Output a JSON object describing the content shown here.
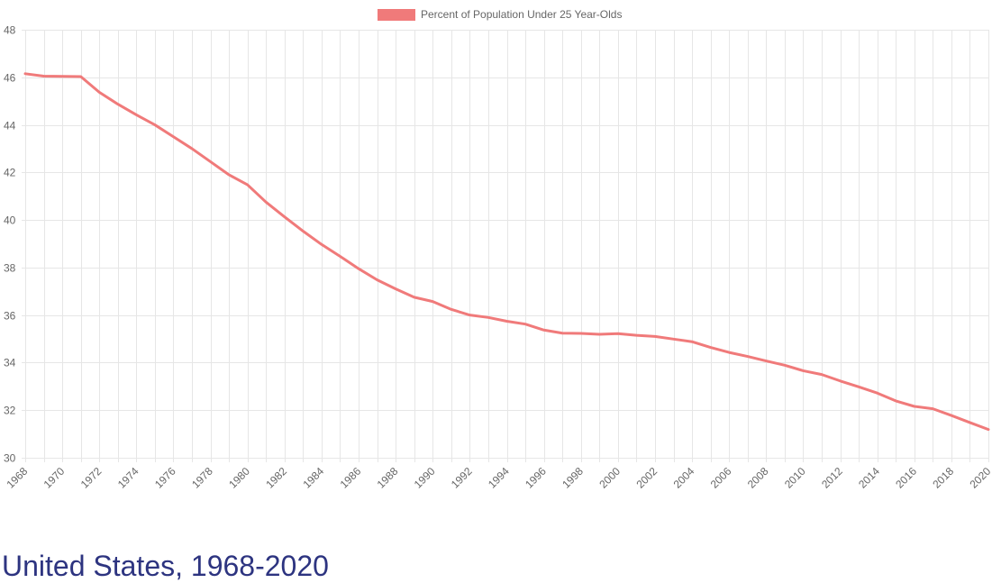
{
  "heading": "United States, 1968-2020",
  "chart_data": {
    "type": "line",
    "title": "",
    "xlabel": "",
    "ylabel": "",
    "legend_position": "top",
    "grid": true,
    "line_color": "#f07a7a",
    "ylim": [
      30,
      48
    ],
    "y_ticks": [
      30,
      32,
      34,
      36,
      38,
      40,
      42,
      44,
      46,
      48
    ],
    "x_ticks": [
      "1968",
      "1970",
      "1972",
      "1974",
      "1976",
      "1978",
      "1980",
      "1982",
      "1984",
      "1986",
      "1988",
      "1990",
      "1992",
      "1994",
      "1996",
      "1998",
      "2000",
      "2002",
      "2004",
      "2006",
      "2008",
      "2010",
      "2012",
      "2014",
      "2016",
      "2018",
      "2020"
    ],
    "x": [
      1968,
      1969,
      1970,
      1971,
      1972,
      1973,
      1974,
      1975,
      1976,
      1977,
      1978,
      1979,
      1980,
      1981,
      1982,
      1983,
      1984,
      1985,
      1986,
      1987,
      1988,
      1989,
      1990,
      1991,
      1992,
      1993,
      1994,
      1995,
      1996,
      1997,
      1998,
      1999,
      2000,
      2001,
      2002,
      2003,
      2004,
      2005,
      2006,
      2007,
      2008,
      2009,
      2010,
      2011,
      2012,
      2013,
      2014,
      2015,
      2016,
      2017,
      2018,
      2019,
      2020
    ],
    "series": [
      {
        "name": "Percent of Population Under 25 Year-Olds",
        "values": [
          46.15,
          46.05,
          46.04,
          46.03,
          45.37,
          44.87,
          44.42,
          44.0,
          43.5,
          43.0,
          42.45,
          41.9,
          41.48,
          40.75,
          40.13,
          39.53,
          38.97,
          38.47,
          37.95,
          37.48,
          37.1,
          36.75,
          36.57,
          36.24,
          36.0,
          35.9,
          35.74,
          35.62,
          35.37,
          35.24,
          35.23,
          35.19,
          35.22,
          35.15,
          35.1,
          34.99,
          34.88,
          34.64,
          34.43,
          34.26,
          34.07,
          33.89,
          33.66,
          33.5,
          33.23,
          32.98,
          32.72,
          32.39,
          32.16,
          32.06,
          31.78,
          31.48,
          31.19
        ]
      }
    ]
  }
}
